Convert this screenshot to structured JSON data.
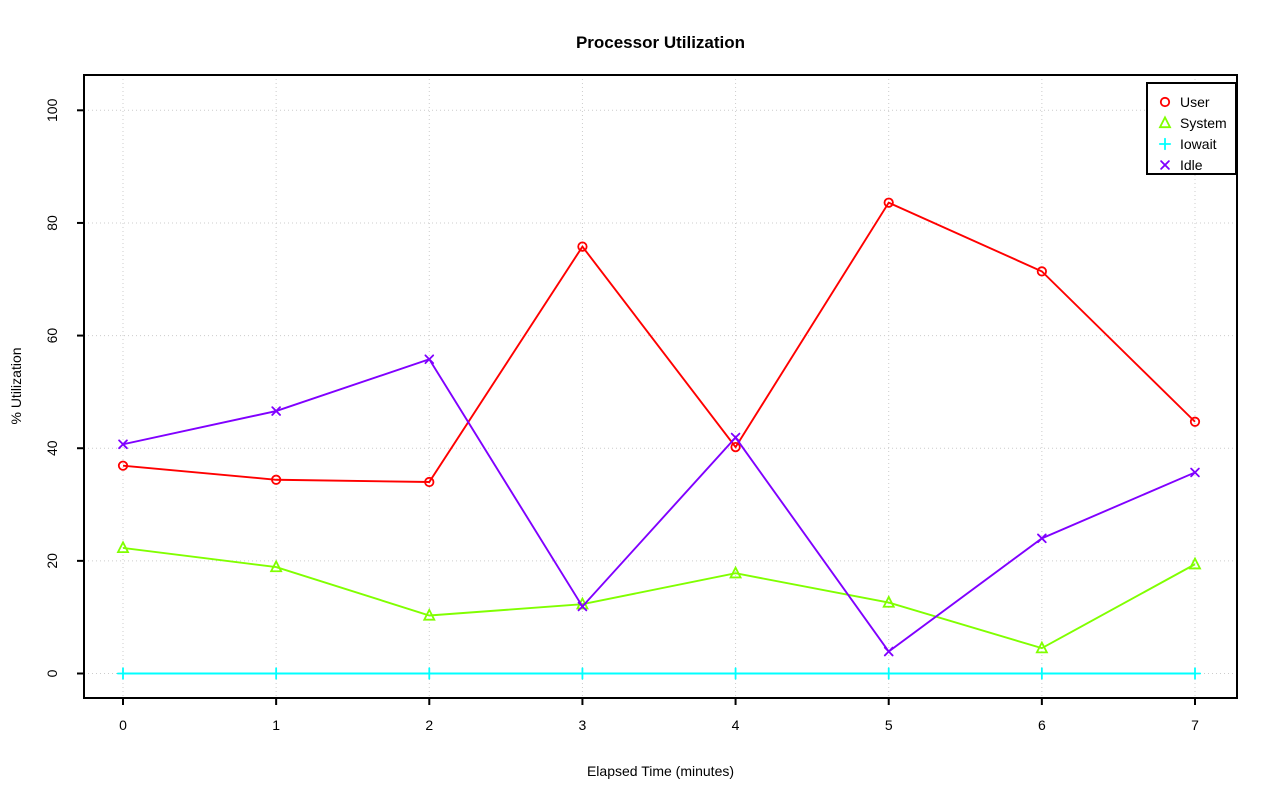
{
  "title": "Processor Utilization",
  "chart_data": {
    "type": "line",
    "title": "Processor Utilization",
    "xlabel": "Elapsed Time (minutes)",
    "ylabel": "% Utilization",
    "x": [
      0,
      1,
      2,
      3,
      4,
      5,
      6,
      7
    ],
    "xticks": [
      "0",
      "1",
      "2",
      "3",
      "4",
      "5",
      "6",
      "7"
    ],
    "yticks": [
      "0",
      "20",
      "40",
      "60",
      "80",
      "100"
    ],
    "ytick_values": [
      0,
      20,
      40,
      60,
      80,
      100
    ],
    "xlim": [
      0,
      7
    ],
    "ylim": [
      0,
      100
    ],
    "grid": true,
    "grid_style": "dotted",
    "grid_color": "#cccccc",
    "legend_position": "topright",
    "series": [
      {
        "name": "User",
        "marker": "circle",
        "color": "#FF0000",
        "values": [
          36.9,
          34.4,
          34.0,
          75.8,
          40.2,
          83.6,
          71.4,
          44.7
        ]
      },
      {
        "name": "System",
        "marker": "triangle",
        "color": "#80FF00",
        "values": [
          22.3,
          18.9,
          10.3,
          12.3,
          17.8,
          12.6,
          4.5,
          19.4
        ]
      },
      {
        "name": "Iowait",
        "marker": "plus",
        "color": "#00FFFF",
        "values": [
          0,
          0,
          0,
          0,
          0,
          0,
          0,
          0
        ]
      },
      {
        "name": "Idle",
        "marker": "x",
        "color": "#8000FF",
        "values": [
          40.7,
          46.6,
          55.8,
          11.9,
          41.9,
          3.9,
          24.0,
          35.7
        ]
      }
    ]
  }
}
